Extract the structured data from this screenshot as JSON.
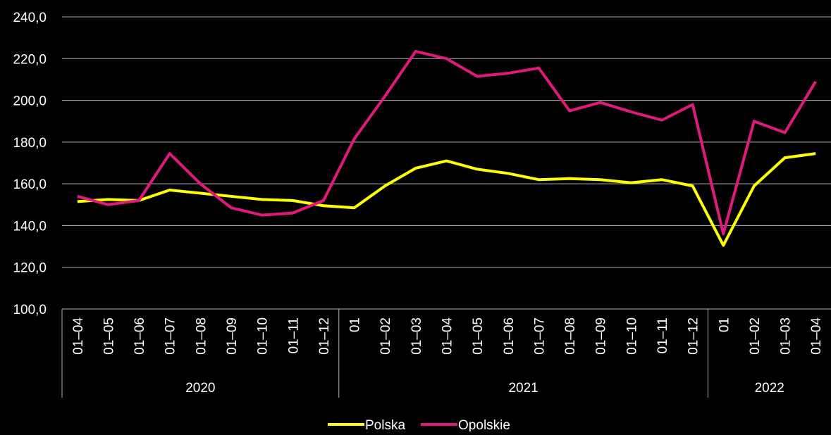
{
  "chart_data": {
    "type": "line",
    "groups": [
      {
        "name": "2020",
        "categories": [
          "01–04",
          "01–05",
          "01–06",
          "01–07",
          "01–08",
          "01–09",
          "01–10",
          "01–11",
          "01–12"
        ]
      },
      {
        "name": "2021",
        "categories": [
          "01",
          "01–02",
          "01–03",
          "01–04",
          "01–05",
          "01–06",
          "01–07",
          "01–08",
          "01–09",
          "01–10",
          "01–11",
          "01–12"
        ]
      },
      {
        "name": "2022",
        "categories": [
          "01",
          "01–02",
          "01–03",
          "01–04"
        ]
      }
    ],
    "series": [
      {
        "name": "Polska",
        "color": "#ffff00",
        "values": [
          151.5,
          152.5,
          152,
          157,
          155.5,
          154,
          152.5,
          152,
          149.5,
          148.5,
          159,
          167.5,
          171,
          167,
          165,
          162,
          162.5,
          162,
          160.5,
          162,
          159,
          130.5,
          159,
          172.5,
          174.5
        ]
      },
      {
        "name": "Opolskie",
        "color": "#e0197d",
        "values": [
          154,
          150,
          152,
          174.5,
          160,
          148.5,
          145,
          146,
          152,
          181.5,
          202,
          223.5,
          220,
          211.5,
          213,
          215.5,
          195,
          199,
          194.5,
          190.5,
          198,
          136,
          190,
          184.5,
          209
        ]
      }
    ],
    "ylim": [
      100,
      240
    ],
    "yticks": [
      {
        "value": 100,
        "label": "100,0"
      },
      {
        "value": 120,
        "label": "120,0"
      },
      {
        "value": 140,
        "label": "140,0"
      },
      {
        "value": 160,
        "label": "160,0"
      },
      {
        "value": 180,
        "label": "180,0"
      },
      {
        "value": 200,
        "label": "200,0"
      },
      {
        "value": 220,
        "label": "220,0"
      },
      {
        "value": 240,
        "label": "240,0"
      }
    ],
    "grid": true,
    "legend": "bottom"
  }
}
